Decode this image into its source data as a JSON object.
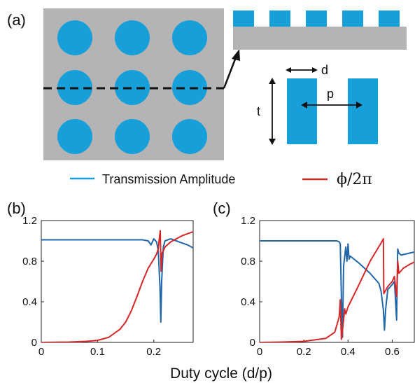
{
  "panels": {
    "a": "(a)",
    "b": "(b)",
    "c": "(c)"
  },
  "colors": {
    "pillar": "#169fd9",
    "substrate": "#b4b4b4",
    "amplitude": "#2166a8",
    "phase": "#d62728",
    "legend_amp": "#169fd9"
  },
  "diagram": {
    "d_label": "d",
    "p_label": "p",
    "t_label": "t"
  },
  "legend": {
    "amplitude_label": "Transmission Amplitude",
    "phase_label": "ϕ/2π"
  },
  "xlabel": "Duty cycle (d/p)",
  "chart_data": [
    {
      "type": "line",
      "panel": "(b)",
      "xlim": [
        0,
        0.27
      ],
      "ylim": [
        0,
        1.2
      ],
      "xticks": [
        "0",
        "0.1",
        "0.2"
      ],
      "xtick_values": [
        0,
        0.1,
        0.2
      ],
      "yticks": [
        "0",
        "0.4",
        "0.8",
        "1.2"
      ],
      "ytick_values": [
        0,
        0.4,
        0.8,
        1.2
      ],
      "grid": false,
      "series": [
        {
          "role": "amplitude",
          "x": [
            0,
            0.05,
            0.1,
            0.15,
            0.18,
            0.19,
            0.195,
            0.2,
            0.205,
            0.208,
            0.211,
            0.2125,
            0.214,
            0.217,
            0.22,
            0.23,
            0.24,
            0.25,
            0.26,
            0.27
          ],
          "y": [
            1.01,
            1.01,
            1.01,
            1.01,
            1.01,
            1.0,
            0.96,
            1.02,
            0.99,
            0.9,
            0.55,
            0.2,
            0.6,
            0.94,
            1.0,
            1.02,
            1.0,
            0.98,
            0.96,
            0.93
          ]
        },
        {
          "role": "phase",
          "x": [
            0,
            0.05,
            0.08,
            0.1,
            0.12,
            0.14,
            0.15,
            0.16,
            0.17,
            0.18,
            0.19,
            0.2,
            0.205,
            0.208,
            0.21,
            0.2115,
            0.213,
            0.215,
            0.22,
            0.23,
            0.24,
            0.25,
            0.26,
            0.27
          ],
          "y": [
            0,
            0.003,
            0.01,
            0.02,
            0.05,
            0.13,
            0.2,
            0.31,
            0.45,
            0.6,
            0.73,
            0.82,
            0.87,
            0.92,
            1.03,
            1.1,
            0.7,
            0.88,
            0.94,
            0.99,
            1.02,
            1.05,
            1.07,
            1.09
          ]
        }
      ]
    },
    {
      "type": "line",
      "panel": "(c)",
      "xlim": [
        0,
        0.7
      ],
      "ylim": [
        0,
        1.2
      ],
      "xticks": [
        "0",
        "0.2",
        "0.4",
        "0.6"
      ],
      "xtick_values": [
        0,
        0.2,
        0.4,
        0.6
      ],
      "yticks": [
        "0",
        "0.4",
        "0.8",
        "1.2"
      ],
      "ytick_values": [
        0,
        0.4,
        0.8,
        1.2
      ],
      "grid": false,
      "series": [
        {
          "role": "amplitude",
          "x": [
            0,
            0.1,
            0.2,
            0.3,
            0.35,
            0.36,
            0.365,
            0.37,
            0.375,
            0.38,
            0.39,
            0.395,
            0.4,
            0.405,
            0.41,
            0.45,
            0.5,
            0.54,
            0.55,
            0.56,
            0.565,
            0.57,
            0.58,
            0.6,
            0.61,
            0.62,
            0.625,
            0.63,
            0.64,
            0.66,
            0.68,
            0.7
          ],
          "y": [
            1.0,
            1.0,
            1.0,
            1.0,
            1.0,
            0.99,
            0.97,
            0.45,
            0.05,
            0.75,
            0.94,
            0.8,
            0.97,
            0.82,
            0.85,
            0.78,
            0.68,
            0.58,
            0.5,
            0.32,
            0.12,
            0.32,
            0.52,
            0.57,
            0.6,
            0.22,
            0.92,
            0.88,
            0.86,
            0.87,
            0.88,
            0.89
          ]
        },
        {
          "role": "phase",
          "x": [
            0,
            0.1,
            0.2,
            0.3,
            0.34,
            0.36,
            0.365,
            0.37,
            0.38,
            0.385,
            0.39,
            0.4,
            0.45,
            0.5,
            0.55,
            0.56,
            0.562,
            0.58,
            0.6,
            0.61,
            0.62,
            0.625,
            0.63,
            0.65,
            0.68,
            0.7
          ],
          "y": [
            0,
            0.003,
            0.01,
            0.04,
            0.1,
            0.25,
            0.42,
            0.03,
            0.22,
            0.33,
            0.28,
            0.35,
            0.57,
            0.8,
            0.98,
            1.02,
            0.48,
            0.55,
            0.6,
            0.65,
            0.45,
            0.8,
            0.68,
            0.73,
            0.77,
            0.79
          ]
        }
      ]
    }
  ]
}
